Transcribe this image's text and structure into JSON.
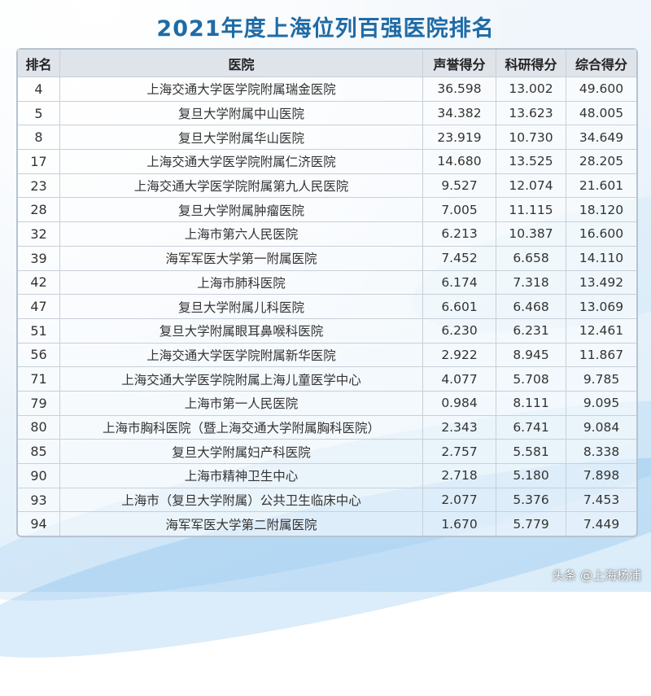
{
  "title": "2021年度上海位列百强医院排名",
  "table": {
    "headers": [
      "排名",
      "医院",
      "声誉得分",
      "科研得分",
      "综合得分"
    ],
    "rows": [
      [
        "4",
        "上海交通大学医学院附属瑞金医院",
        "36.598",
        "13.002",
        "49.600"
      ],
      [
        "5",
        "复旦大学附属中山医院",
        "34.382",
        "13.623",
        "48.005"
      ],
      [
        "8",
        "复旦大学附属华山医院",
        "23.919",
        "10.730",
        "34.649"
      ],
      [
        "17",
        "上海交通大学医学院附属仁济医院",
        "14.680",
        "13.525",
        "28.205"
      ],
      [
        "23",
        "上海交通大学医学院附属第九人民医院",
        "9.527",
        "12.074",
        "21.601"
      ],
      [
        "28",
        "复旦大学附属肿瘤医院",
        "7.005",
        "11.115",
        "18.120"
      ],
      [
        "32",
        "上海市第六人民医院",
        "6.213",
        "10.387",
        "16.600"
      ],
      [
        "39",
        "海军军医大学第一附属医院",
        "7.452",
        "6.658",
        "14.110"
      ],
      [
        "42",
        "上海市肺科医院",
        "6.174",
        "7.318",
        "13.492"
      ],
      [
        "47",
        "复旦大学附属儿科医院",
        "6.601",
        "6.468",
        "13.069"
      ],
      [
        "51",
        "复旦大学附属眼耳鼻喉科医院",
        "6.230",
        "6.231",
        "12.461"
      ],
      [
        "56",
        "上海交通大学医学院附属新华医院",
        "2.922",
        "8.945",
        "11.867"
      ],
      [
        "71",
        "上海交通大学医学院附属上海儿童医学中心",
        "4.077",
        "5.708",
        "9.785"
      ],
      [
        "79",
        "上海市第一人民医院",
        "0.984",
        "8.111",
        "9.095"
      ],
      [
        "80",
        "上海市胸科医院（暨上海交通大学附属胸科医院）",
        "2.343",
        "6.741",
        "9.084"
      ],
      [
        "85",
        "复旦大学附属妇产科医院",
        "2.757",
        "5.581",
        "8.338"
      ],
      [
        "90",
        "上海市精神卫生中心",
        "2.718",
        "5.180",
        "7.898"
      ],
      [
        "93",
        "上海市（复旦大学附属）公共卫生临床中心",
        "2.077",
        "5.376",
        "7.453"
      ],
      [
        "94",
        "海军军医大学第二附属医院",
        "1.670",
        "5.779",
        "7.449"
      ]
    ]
  },
  "watermark": "头条 @上海杨浦"
}
